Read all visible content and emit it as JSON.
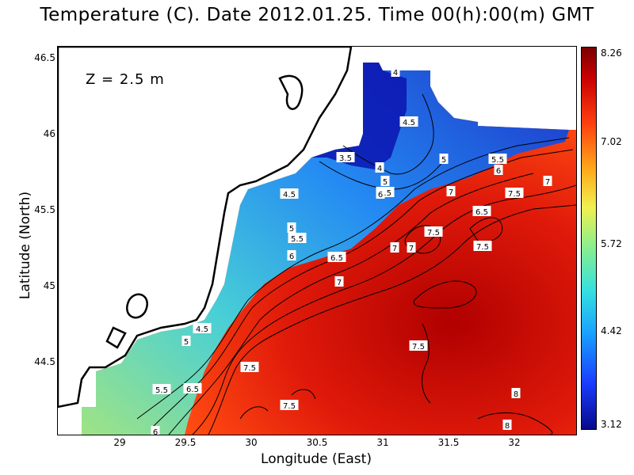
{
  "title": "Temperature (C). Date 2012.01.25. Time 00(h):00(m) GMT",
  "depth_label": "Z  =  2.5  m",
  "axes": {
    "xlabel": "Longitude (East)",
    "ylabel": "Latitude (North)",
    "x_ticks": [
      "29",
      "29.5",
      "30",
      "30.5",
      "31",
      "31.5",
      "32"
    ],
    "y_ticks": [
      "46.5",
      "46",
      "45.5",
      "45",
      "44.5"
    ],
    "x_range": [
      28.53,
      32.43
    ],
    "y_range": [
      44.05,
      46.55
    ]
  },
  "colorbar": {
    "ticks": [
      "8.26",
      "7.02",
      "5.72",
      "4.42",
      "3.12"
    ],
    "min": 3.12,
    "max": 8.26
  },
  "contour_labels": [
    "4",
    "4.5",
    "3.5",
    "4",
    "5",
    "5.5",
    "6",
    "5",
    "5.5",
    "6",
    "7",
    "7.5",
    "7",
    "6.5",
    "4.5",
    "5",
    "5.5",
    "6",
    "6.5",
    "7",
    "7",
    "7",
    "7.5",
    "7.5",
    "7.5",
    "4.5",
    "5",
    "5.5",
    "6.5",
    "7.5",
    "7.5",
    "6",
    "8",
    "8"
  ],
  "colors": {
    "cold": "#0a0aa0",
    "mid": "#f0f050",
    "warm": "#c80000",
    "land": "#ffffff"
  }
}
